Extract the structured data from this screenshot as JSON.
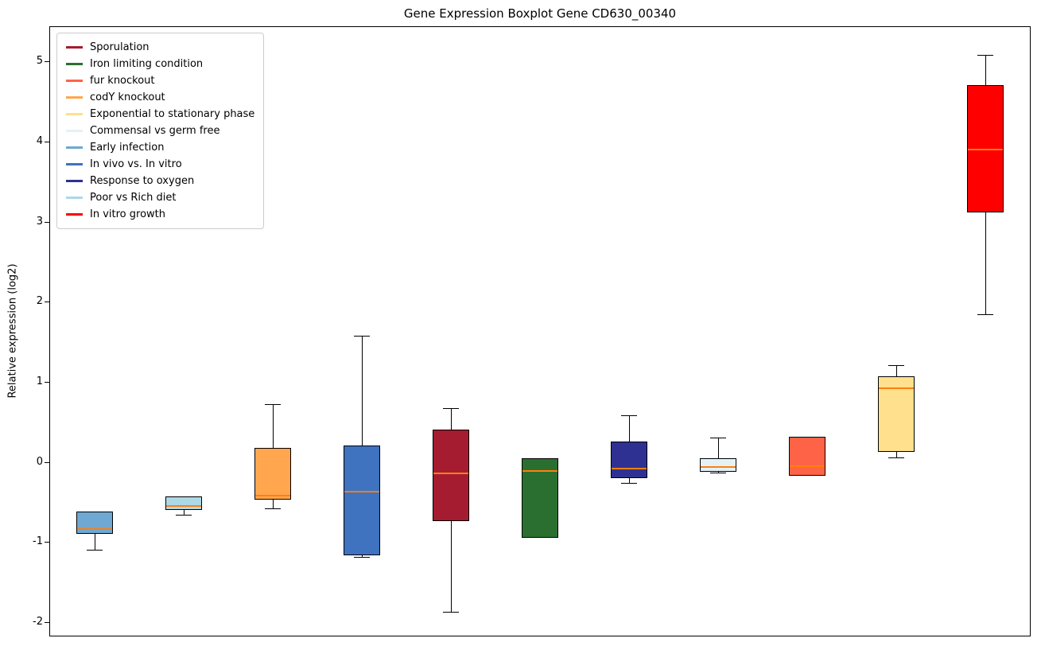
{
  "chart_data": {
    "type": "boxplot",
    "title": "Gene Expression Boxplot Gene CD630_00340",
    "ylabel": "Relative expression (log2)",
    "ylim": [
      -2.17,
      5.43
    ],
    "yticks": [
      -2,
      -1,
      0,
      1,
      2,
      3,
      4,
      5
    ],
    "grid": false,
    "legend_position": "upper-left",
    "median_color": "#ff7f0e",
    "whisker_color": "#000000",
    "box_edge_color": "#000000",
    "legend": [
      {
        "label": "Sporulation",
        "color": "#a51c30"
      },
      {
        "label": "Iron limiting condition",
        "color": "#2a6f2f"
      },
      {
        "label": "fur knockout",
        "color": "#ff6347"
      },
      {
        "label": "codY knockout",
        "color": "#ffa64f"
      },
      {
        "label": "Exponential to stationary phase",
        "color": "#ffe08c"
      },
      {
        "label": "Commensal vs germ free",
        "color": "#e4f1f7"
      },
      {
        "label": "Early infection",
        "color": "#6fa8d2"
      },
      {
        "label": "In vivo vs. In vitro",
        "color": "#3f72bf"
      },
      {
        "label": "Response to oxygen",
        "color": "#2e3192"
      },
      {
        "label": "Poor vs Rich diet",
        "color": "#add8e6"
      },
      {
        "label": "In vitro growth",
        "color": "#ff0000"
      }
    ],
    "boxes": [
      {
        "name": "Early infection",
        "color": "#6fa8d2",
        "whisker_low": -1.1,
        "q1": -0.9,
        "median": -0.84,
        "q3": -0.62,
        "whisker_high": -0.62
      },
      {
        "name": "Poor vs Rich diet",
        "color": "#add8e6",
        "whisker_low": -0.66,
        "q1": -0.6,
        "median": -0.55,
        "q3": -0.43,
        "whisker_high": -0.43
      },
      {
        "name": "codY knockout",
        "color": "#ffa64f",
        "whisker_low": -0.58,
        "q1": -0.47,
        "median": -0.42,
        "q3": 0.17,
        "whisker_high": 0.72
      },
      {
        "name": "In vivo vs. In vitro",
        "color": "#3f72bf",
        "whisker_low": -1.19,
        "q1": -1.17,
        "median": -0.37,
        "q3": 0.2,
        "whisker_high": 1.58
      },
      {
        "name": "Sporulation",
        "color": "#a51c30",
        "whisker_low": -1.87,
        "q1": -0.74,
        "median": -0.14,
        "q3": 0.4,
        "whisker_high": 0.67
      },
      {
        "name": "Iron limiting condition",
        "color": "#2a6f2f",
        "whisker_low": -0.95,
        "q1": -0.95,
        "median": -0.11,
        "q3": 0.05,
        "whisker_high": 0.05
      },
      {
        "name": "Response to oxygen",
        "color": "#2e3192",
        "whisker_low": -0.26,
        "q1": -0.2,
        "median": -0.08,
        "q3": 0.25,
        "whisker_high": 0.58
      },
      {
        "name": "Commensal vs germ free",
        "color": "#e4f1f7",
        "whisker_low": -0.13,
        "q1": -0.12,
        "median": -0.06,
        "q3": 0.05,
        "whisker_high": 0.3
      },
      {
        "name": "fur knockout",
        "color": "#ff6347",
        "whisker_low": -0.17,
        "q1": -0.17,
        "median": -0.05,
        "q3": 0.31,
        "whisker_high": 0.31
      },
      {
        "name": "Exponential to stationary phase",
        "color": "#ffe08c",
        "whisker_low": 0.06,
        "q1": 0.12,
        "median": 0.92,
        "q3": 1.07,
        "whisker_high": 1.21
      },
      {
        "name": "In vitro growth",
        "color": "#ff0000",
        "whisker_low": 1.84,
        "q1": 3.12,
        "median": 3.9,
        "q3": 4.7,
        "whisker_high": 5.08
      }
    ]
  }
}
